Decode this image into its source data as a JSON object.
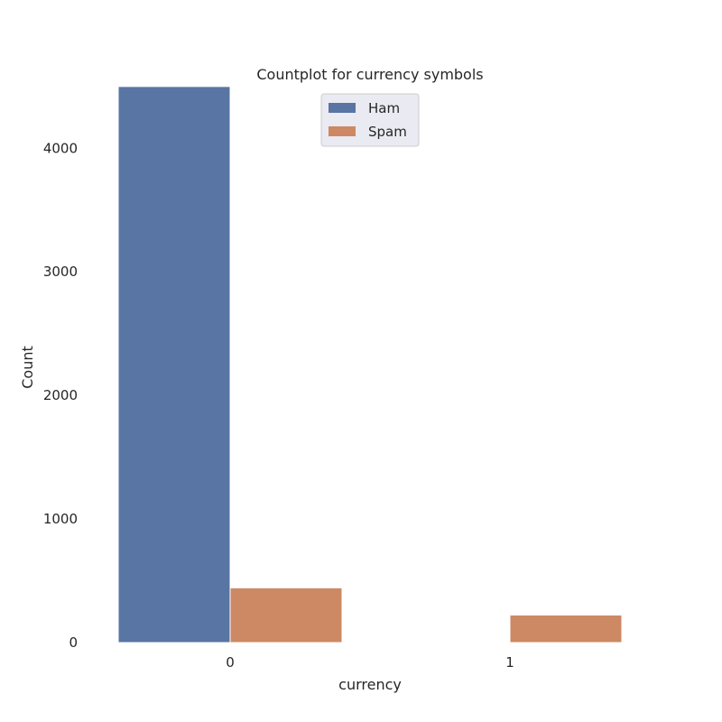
{
  "chart_data": {
    "type": "bar",
    "title": "Countplot for currency symbols",
    "xlabel": "currency",
    "ylabel": "Count",
    "categories": [
      "0",
      "1"
    ],
    "series": [
      {
        "name": "Ham",
        "color": "#5875a4",
        "values": [
          4500,
          5
        ]
      },
      {
        "name": "Spam",
        "color": "#cc8963",
        "values": [
          443,
          223
        ]
      }
    ],
    "ylim": [
      0,
      4740
    ],
    "yticks": [
      0,
      1000,
      2000,
      3000,
      4000
    ],
    "ytick_labels": [
      "0",
      "1000",
      "2000",
      "3000",
      "4000"
    ],
    "grid": false,
    "legend_position": "top-center"
  }
}
